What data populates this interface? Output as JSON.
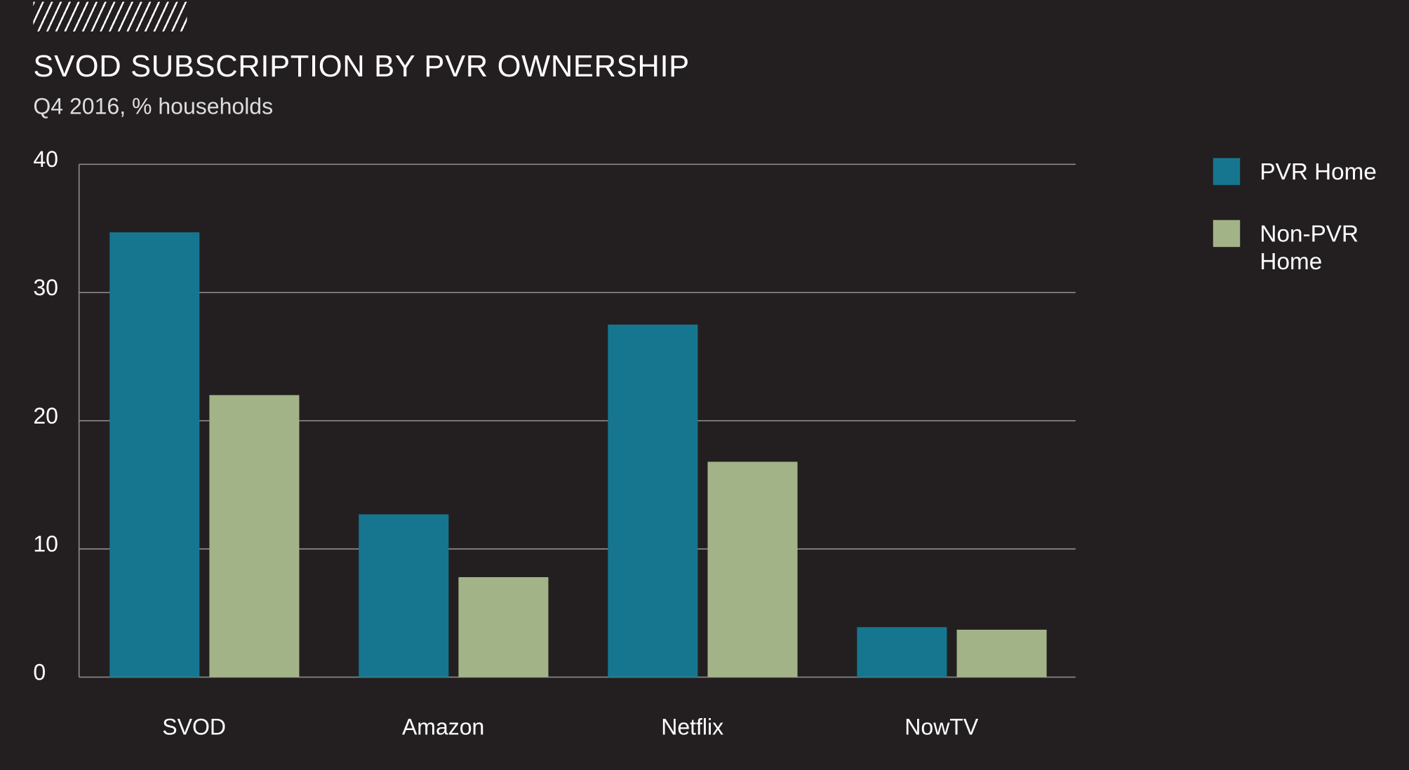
{
  "chart_data": {
    "type": "bar",
    "title": "SVOD SUBSCRIPTION BY PVR OWNERSHIP",
    "subtitle": "Q4 2016, % households",
    "categories": [
      "SVOD",
      "Amazon",
      "Netflix",
      "NowTV"
    ],
    "series": [
      {
        "name": "PVR Home",
        "color": "#16768f",
        "values": [
          34.7,
          12.7,
          27.5,
          3.9
        ]
      },
      {
        "name": "Non-PVR Home",
        "color": "#a3b388",
        "values": [
          22.0,
          7.8,
          16.8,
          3.7
        ]
      }
    ],
    "ylim": [
      0,
      40
    ],
    "yticks": [
      "0",
      "10",
      "20",
      "30",
      "40"
    ],
    "grid": true,
    "legend_position": "right"
  }
}
